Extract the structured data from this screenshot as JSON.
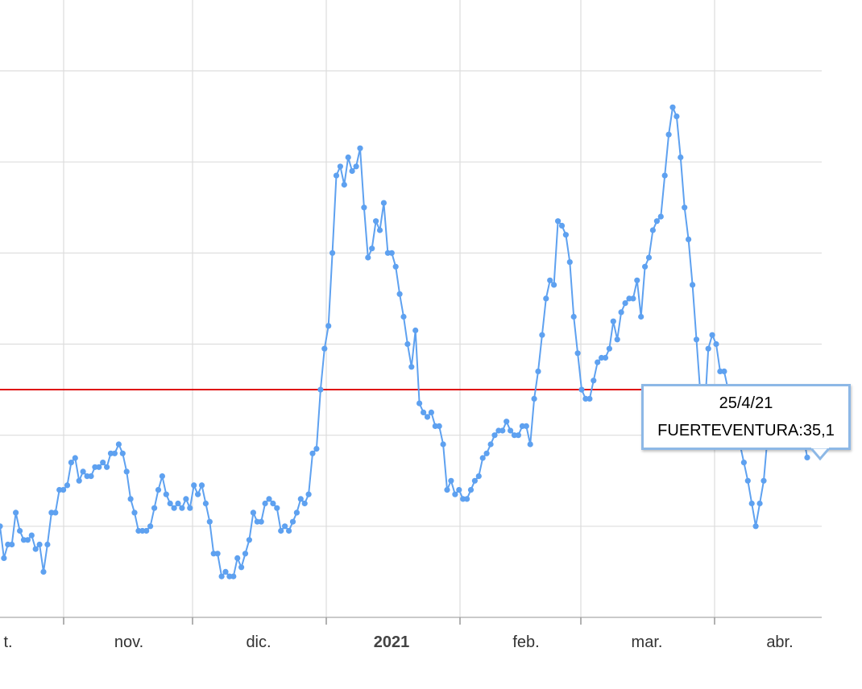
{
  "chart_data": {
    "type": "line",
    "x_tick_labels": [
      {
        "label": "t.",
        "bold": false
      },
      {
        "label": "nov.",
        "bold": false
      },
      {
        "label": "dic.",
        "bold": false
      },
      {
        "label": "2021",
        "bold": true
      },
      {
        "label": "feb.",
        "bold": false
      },
      {
        "label": "mar.",
        "bold": false
      },
      {
        "label": "abr.",
        "bold": false
      }
    ],
    "grid": true,
    "ylim": [
      0,
      120
    ],
    "reference_line": {
      "value": 50,
      "color": "#dd0000"
    },
    "series": [
      {
        "color": "#5ea1f0",
        "values": [
          20,
          13,
          16,
          16,
          23,
          19,
          17,
          17,
          18,
          15,
          16,
          10,
          16,
          23,
          23,
          28,
          28,
          29,
          34,
          35,
          30,
          32,
          31,
          31,
          33,
          33,
          34,
          33,
          36,
          36,
          38,
          36,
          32,
          26,
          23,
          19,
          19,
          19,
          20,
          24,
          28,
          31,
          27,
          25,
          24,
          25,
          24,
          26,
          24,
          29,
          27,
          29,
          25,
          21,
          14,
          14,
          9,
          10,
          9,
          9,
          13,
          11,
          14,
          17,
          23,
          21,
          21,
          25,
          26,
          25,
          24,
          19,
          20,
          19,
          21,
          23,
          26,
          25,
          27,
          36,
          37,
          50,
          59,
          64,
          80,
          97,
          99,
          95,
          101,
          98,
          99,
          103,
          90,
          79,
          81,
          87,
          85,
          91,
          80,
          80,
          77,
          71,
          66,
          60,
          55,
          63,
          47,
          45,
          44,
          45,
          42,
          42,
          38,
          28,
          30,
          27,
          28,
          26,
          26,
          28,
          30,
          31,
          35,
          36,
          38,
          40,
          41,
          41,
          43,
          41,
          40,
          40,
          42,
          42,
          38,
          48,
          54,
          62,
          70,
          74,
          73,
          87,
          86,
          84,
          78,
          66,
          58,
          50,
          48,
          48,
          52,
          56,
          57,
          57,
          59,
          65,
          61,
          67,
          69,
          70,
          70,
          74,
          66,
          77,
          79,
          85,
          87,
          88,
          97,
          106,
          112,
          110,
          101,
          90,
          83,
          73,
          61,
          49,
          44,
          59,
          62,
          60,
          54,
          54,
          50,
          45,
          40,
          38,
          34,
          30,
          25,
          20,
          25,
          30,
          40,
          42,
          50,
          48,
          46,
          50,
          49,
          46,
          45,
          40,
          35.1
        ]
      }
    ],
    "tooltip": {
      "date": "25/4/21",
      "label": "FUERTEVENTURA:35,1"
    }
  }
}
